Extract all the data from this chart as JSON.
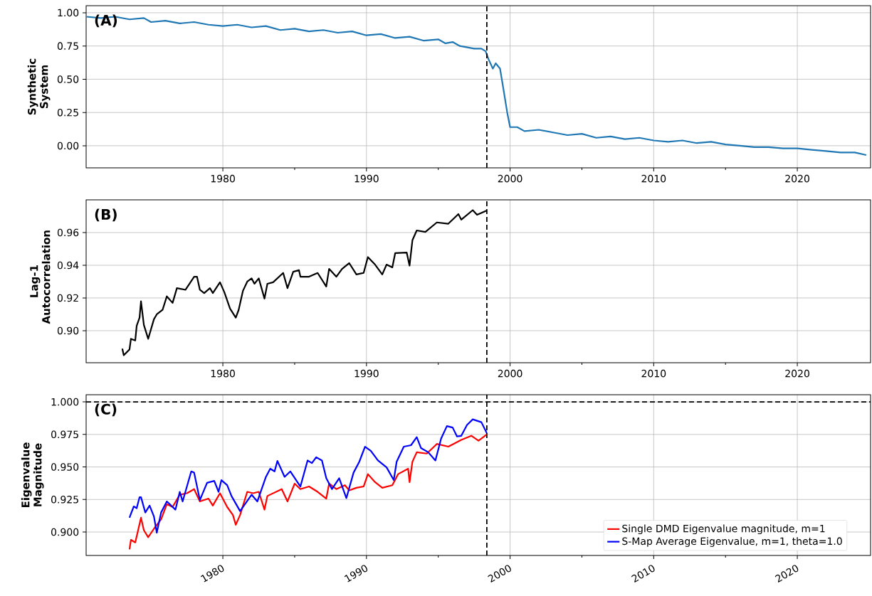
{
  "chart_data": [
    {
      "type": "line",
      "ylabel": "Synthetic System",
      "annotations": [
        "(A)"
      ],
      "grid": true,
      "xlim": [
        1970.48,
        2025.1
      ],
      "ylim": [
        -0.166,
        1.053
      ],
      "xticks": [
        1980,
        1990,
        2000,
        2010,
        2020
      ],
      "yticks": [
        {
          "value": 0,
          "label": "0.00"
        },
        {
          "value": 0.25,
          "label": "0.25"
        },
        {
          "value": 0.5,
          "label": "0.50"
        },
        {
          "value": 0.75,
          "label": "0.75"
        },
        {
          "value": 1,
          "label": "1.00"
        }
      ],
      "ref_lines": [
        {
          "axis": "x",
          "value": 1998.38,
          "color": "#000000",
          "line_style": "dashed"
        }
      ],
      "series": [
        {
          "color": "#1f77b4",
          "x": [
            1970.5,
            1971.5,
            1972.5,
            1973.5,
            1974.5,
            1975,
            1976,
            1977,
            1978,
            1979,
            1980,
            1981,
            1982,
            1983,
            1984,
            1985,
            1986,
            1987,
            1988,
            1989,
            1990,
            1991,
            1992,
            1993,
            1994,
            1995,
            1995.5,
            1996,
            1996.5,
            1997,
            1997.5,
            1998,
            1998.3,
            1998.5,
            1998.8,
            1999,
            1999.3,
            1999.5,
            1999.8,
            2000,
            2000.5,
            2001,
            2002,
            2003,
            2004,
            2005,
            2006,
            2007,
            2008,
            2009,
            2010,
            2011,
            2012,
            2013,
            2014,
            2015,
            2016,
            2017,
            2018,
            2019,
            2020,
            2021,
            2022,
            2023,
            2024,
            2024.8
          ],
          "values": [
            0.97,
            0.96,
            0.97,
            0.95,
            0.96,
            0.93,
            0.94,
            0.92,
            0.93,
            0.91,
            0.9,
            0.91,
            0.89,
            0.9,
            0.87,
            0.88,
            0.86,
            0.87,
            0.85,
            0.86,
            0.83,
            0.84,
            0.81,
            0.82,
            0.79,
            0.8,
            0.77,
            0.78,
            0.75,
            0.74,
            0.73,
            0.73,
            0.71,
            0.65,
            0.58,
            0.62,
            0.58,
            0.45,
            0.25,
            0.14,
            0.14,
            0.11,
            0.12,
            0.1,
            0.08,
            0.09,
            0.06,
            0.07,
            0.05,
            0.06,
            0.04,
            0.03,
            0.04,
            0.02,
            0.03,
            0.01,
            0.0,
            -0.01,
            -0.01,
            -0.02,
            -0.02,
            -0.03,
            -0.04,
            -0.05,
            -0.05,
            -0.07
          ]
        }
      ]
    },
    {
      "type": "line",
      "ylabel": "Lag-1 Autocorrelation",
      "annotations": [
        "(B)"
      ],
      "grid": true,
      "xlim": [
        1970.48,
        2025.1
      ],
      "ylim": [
        0.8804,
        0.98
      ],
      "xticks": [
        1980,
        1990,
        2000,
        2010,
        2020
      ],
      "yticks": [
        {
          "value": 0.9,
          "label": "0.90"
        },
        {
          "value": 0.92,
          "label": "0.92"
        },
        {
          "value": 0.94,
          "label": "0.94"
        },
        {
          "value": 0.96,
          "label": "0.96"
        }
      ],
      "ref_lines": [
        {
          "axis": "x",
          "value": 1998.38,
          "color": "#000000",
          "line_style": "dashed"
        }
      ],
      "series": [
        {
          "color": "#000000",
          "x": [
            1973.0,
            1973.1,
            1973.5,
            1973.6,
            1973.9,
            1974.0,
            1974.2,
            1974.3,
            1974.5,
            1974.8,
            1975.2,
            1975.4,
            1975.8,
            1976.1,
            1976.5,
            1976.8,
            1977.4,
            1978.0,
            1978.2,
            1978.4,
            1978.7,
            1979.1,
            1979.3,
            1979.8,
            1980.1,
            1980.5,
            1980.9,
            1981.1,
            1981.4,
            1981.7,
            1982.0,
            1982.2,
            1982.5,
            1982.9,
            1983.1,
            1983.5,
            1984.2,
            1984.5,
            1984.9,
            1985.3,
            1985.4,
            1986.0,
            1986.6,
            1987.2,
            1987.4,
            1987.9,
            1988.3,
            1988.8,
            1989.3,
            1989.8,
            1990.1,
            1990.6,
            1991.1,
            1991.4,
            1991.8,
            1992.0,
            1992.8,
            1993.0,
            1993.2,
            1993.5,
            1994.1,
            1994.9,
            1995.7,
            1996.4,
            1996.6,
            1997.4,
            1997.7,
            1998.38
          ],
          "values": [
            0.889,
            0.885,
            0.8885,
            0.895,
            0.894,
            0.903,
            0.908,
            0.918,
            0.9035,
            0.895,
            0.907,
            0.91,
            0.9127,
            0.921,
            0.917,
            0.926,
            0.925,
            0.933,
            0.933,
            0.925,
            0.923,
            0.926,
            0.923,
            0.9296,
            0.9236,
            0.9135,
            0.908,
            0.9127,
            0.9244,
            0.93,
            0.932,
            0.9287,
            0.932,
            0.9196,
            0.9287,
            0.9296,
            0.9353,
            0.926,
            0.936,
            0.937,
            0.933,
            0.933,
            0.9353,
            0.927,
            0.9378,
            0.933,
            0.9378,
            0.9413,
            0.9344,
            0.9353,
            0.945,
            0.9404,
            0.9344,
            0.9404,
            0.9387,
            0.9474,
            0.9478,
            0.9398,
            0.9553,
            0.9613,
            0.9604,
            0.9662,
            0.9654,
            0.9713,
            0.9679,
            0.9737,
            0.9709,
            0.9735
          ]
        }
      ]
    },
    {
      "type": "line",
      "ylabel": "Eigenvalue Magnitude",
      "annotations": [
        "(C)"
      ],
      "grid": true,
      "legend": "bottom right",
      "xlim": [
        1970.48,
        2025.1
      ],
      "ylim": [
        0.882,
        1.0055
      ],
      "xticks": [
        1980,
        1990,
        2000,
        2010,
        2020
      ],
      "yticks": [
        {
          "value": 0.9,
          "label": "0.900"
        },
        {
          "value": 0.925,
          "label": "0.925"
        },
        {
          "value": 0.95,
          "label": "0.950"
        },
        {
          "value": 0.975,
          "label": "0.975"
        },
        {
          "value": 1.0,
          "label": "1.000"
        }
      ],
      "ref_lines": [
        {
          "axis": "x",
          "value": 1998.38,
          "color": "#000000",
          "line_style": "dashed"
        },
        {
          "axis": "y",
          "value": 1.0,
          "color": "#000000",
          "line_style": "dashed"
        }
      ],
      "series": [
        {
          "name": "Single DMD Eigenvalue magnitude, m=1",
          "color": "#ff0000",
          "x": [
            1973.5,
            1973.6,
            1973.9,
            1974.1,
            1974.3,
            1974.5,
            1974.8,
            1975.2,
            1975.7,
            1976.1,
            1976.5,
            1977.0,
            1977.5,
            1978.0,
            1978.4,
            1979.0,
            1979.3,
            1979.8,
            1980.3,
            1980.7,
            1980.9,
            1981.2,
            1981.7,
            1982.1,
            1982.5,
            1982.9,
            1983.1,
            1984.1,
            1984.5,
            1985.0,
            1985.4,
            1986.0,
            1986.6,
            1987.2,
            1987.4,
            1987.9,
            1988.5,
            1988.8,
            1989.3,
            1989.8,
            1990.1,
            1990.6,
            1991.1,
            1991.8,
            1992.2,
            1992.9,
            1993.0,
            1993.2,
            1993.5,
            1994.2,
            1994.9,
            1995.7,
            1996.6,
            1997.3,
            1997.8,
            1998.38
          ],
          "values": [
            0.8867,
            0.894,
            0.892,
            0.9014,
            0.911,
            0.9014,
            0.896,
            0.9025,
            0.9098,
            0.9214,
            0.9193,
            0.9287,
            0.9298,
            0.933,
            0.9235,
            0.9257,
            0.9203,
            0.9298,
            0.9193,
            0.9131,
            0.9056,
            0.9131,
            0.9309,
            0.9298,
            0.9309,
            0.9172,
            0.9277,
            0.933,
            0.9235,
            0.9372,
            0.933,
            0.935,
            0.9309,
            0.9257,
            0.9372,
            0.933,
            0.936,
            0.932,
            0.934,
            0.935,
            0.9445,
            0.9383,
            0.934,
            0.936,
            0.9445,
            0.9487,
            0.9383,
            0.954,
            0.9613,
            0.9603,
            0.9677,
            0.9656,
            0.9708,
            0.974,
            0.9702,
            0.975
          ]
        },
        {
          "name": "S-Map Average Eigenvalue, m=1, theta=1.0",
          "color": "#0000ff",
          "x": [
            1973.5,
            1973.6,
            1973.8,
            1974.0,
            1974.2,
            1974.3,
            1974.6,
            1974.9,
            1975.2,
            1975.4,
            1975.7,
            1976.1,
            1976.7,
            1977.0,
            1977.2,
            1977.8,
            1978.0,
            1978.4,
            1978.9,
            1979.4,
            1979.7,
            1979.9,
            1980.3,
            1980.6,
            1981.2,
            1982.0,
            1982.4,
            1983.0,
            1983.3,
            1983.6,
            1983.8,
            1984.3,
            1984.7,
            1985.4,
            1985.9,
            1986.2,
            1986.5,
            1986.9,
            1987.2,
            1987.6,
            1988.1,
            1988.6,
            1989.1,
            1989.5,
            1989.9,
            1990.3,
            1990.8,
            1991.4,
            1991.9,
            1992.1,
            1992.6,
            1993.1,
            1993.5,
            1993.8,
            1994.3,
            1994.8,
            1995.2,
            1995.6,
            1996.0,
            1996.3,
            1996.6,
            1997.0,
            1997.4,
            1998.0,
            1998.38
          ],
          "values": [
            0.911,
            0.914,
            0.9197,
            0.9183,
            0.9268,
            0.9268,
            0.915,
            0.9203,
            0.912,
            0.8995,
            0.915,
            0.9235,
            0.9172,
            0.9309,
            0.9235,
            0.9466,
            0.9456,
            0.9246,
            0.9378,
            0.9393,
            0.9309,
            0.9399,
            0.936,
            0.9277,
            0.9161,
            0.9287,
            0.9235,
            0.9424,
            0.9487,
            0.9466,
            0.9546,
            0.9424,
            0.9466,
            0.935,
            0.955,
            0.953,
            0.9575,
            0.955,
            0.9414,
            0.933,
            0.9414,
            0.926,
            0.9456,
            0.954,
            0.9656,
            0.9624,
            0.955,
            0.9497,
            0.9399,
            0.954,
            0.9656,
            0.9667,
            0.9729,
            0.9645,
            0.9613,
            0.955,
            0.9719,
            0.9814,
            0.9803,
            0.9735,
            0.9739,
            0.9823,
            0.9866,
            0.9844,
            0.976
          ]
        }
      ]
    }
  ]
}
